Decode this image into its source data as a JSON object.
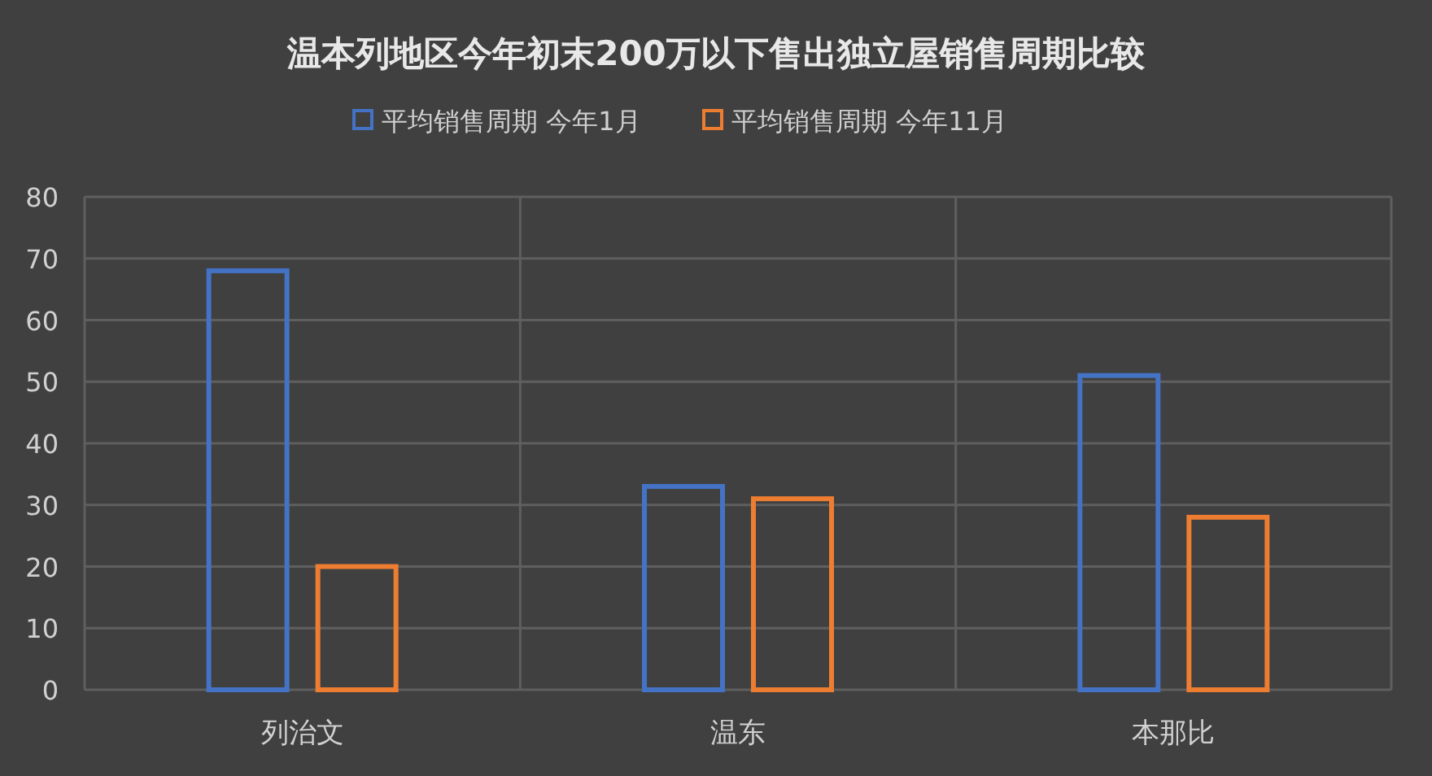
{
  "chart_data": {
    "type": "bar",
    "title": "温本列地区今年初末200万以下售出独立屋销售周期比较",
    "categories": [
      "列治文",
      "温东",
      "本那比"
    ],
    "series": [
      {
        "name": "平均销售周期 今年1月",
        "color": "#4472c4",
        "values": [
          68,
          33,
          51
        ]
      },
      {
        "name": "平均销售周期 今年11月",
        "color": "#ed7d31",
        "values": [
          20,
          31,
          28
        ]
      }
    ],
    "ylim": [
      0,
      80
    ],
    "yticks": [
      0,
      10,
      20,
      30,
      40,
      50,
      60,
      70,
      80
    ],
    "grid": true,
    "legend": "top"
  }
}
